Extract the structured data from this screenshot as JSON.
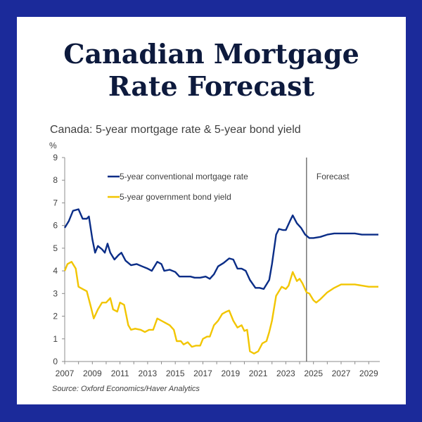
{
  "headline": {
    "line1": "Canadian Mortgage",
    "line2": "Rate Forecast"
  },
  "chart_data": {
    "type": "line",
    "title": "Canada: 5-year mortgage rate & 5-year bond yield",
    "ylabel": "%",
    "ylim": [
      0,
      9
    ],
    "xlim": [
      2007,
      2029.8
    ],
    "yticks": [
      "0",
      "1",
      "2",
      "3",
      "4",
      "5",
      "6",
      "7",
      "8",
      "9"
    ],
    "xticks": [
      "2007",
      "2009",
      "2011",
      "2013",
      "2015",
      "2017",
      "2019",
      "2021",
      "2023",
      "2025",
      "2027",
      "2029"
    ],
    "forecast_start": 2024.5,
    "forecast_label": "Forecast",
    "grid": false,
    "legend": "top-left",
    "series": [
      {
        "name": "5-year conventional mortgage rate",
        "color": "#0a2d87",
        "points": [
          [
            2007.0,
            5.9
          ],
          [
            2007.3,
            6.2
          ],
          [
            2007.6,
            6.65
          ],
          [
            2008.0,
            6.72
          ],
          [
            2008.3,
            6.3
          ],
          [
            2008.6,
            6.3
          ],
          [
            2008.75,
            6.4
          ],
          [
            2009.0,
            5.4
          ],
          [
            2009.2,
            4.8
          ],
          [
            2009.4,
            5.1
          ],
          [
            2009.7,
            4.95
          ],
          [
            2009.9,
            4.8
          ],
          [
            2010.1,
            5.2
          ],
          [
            2010.3,
            4.8
          ],
          [
            2010.6,
            4.5
          ],
          [
            2010.9,
            4.7
          ],
          [
            2011.1,
            4.8
          ],
          [
            2011.4,
            4.45
          ],
          [
            2011.8,
            4.25
          ],
          [
            2012.2,
            4.3
          ],
          [
            2012.6,
            4.2
          ],
          [
            2013.0,
            4.1
          ],
          [
            2013.3,
            4.0
          ],
          [
            2013.7,
            4.4
          ],
          [
            2014.0,
            4.3
          ],
          [
            2014.2,
            4.0
          ],
          [
            2014.6,
            4.05
          ],
          [
            2015.0,
            3.95
          ],
          [
            2015.3,
            3.75
          ],
          [
            2015.7,
            3.75
          ],
          [
            2016.1,
            3.75
          ],
          [
            2016.4,
            3.7
          ],
          [
            2016.8,
            3.7
          ],
          [
            2017.2,
            3.75
          ],
          [
            2017.5,
            3.65
          ],
          [
            2017.8,
            3.85
          ],
          [
            2018.1,
            4.2
          ],
          [
            2018.5,
            4.35
          ],
          [
            2018.9,
            4.55
          ],
          [
            2019.2,
            4.5
          ],
          [
            2019.5,
            4.1
          ],
          [
            2019.8,
            4.1
          ],
          [
            2020.1,
            4.0
          ],
          [
            2020.4,
            3.6
          ],
          [
            2020.8,
            3.25
          ],
          [
            2021.1,
            3.25
          ],
          [
            2021.4,
            3.2
          ],
          [
            2021.8,
            3.6
          ],
          [
            2022.0,
            4.3
          ],
          [
            2022.3,
            5.6
          ],
          [
            2022.5,
            5.85
          ],
          [
            2022.8,
            5.8
          ],
          [
            2023.0,
            5.8
          ],
          [
            2023.3,
            6.2
          ],
          [
            2023.5,
            6.45
          ],
          [
            2023.8,
            6.1
          ],
          [
            2024.1,
            5.9
          ],
          [
            2024.4,
            5.6
          ],
          [
            2024.7,
            5.45
          ],
          [
            2025.0,
            5.45
          ],
          [
            2025.5,
            5.5
          ],
          [
            2026.0,
            5.6
          ],
          [
            2026.5,
            5.65
          ],
          [
            2027.0,
            5.65
          ],
          [
            2027.5,
            5.65
          ],
          [
            2028.0,
            5.65
          ],
          [
            2028.5,
            5.6
          ],
          [
            2029.0,
            5.6
          ],
          [
            2029.7,
            5.6
          ]
        ]
      },
      {
        "name": "5-year government bond yield",
        "color": "#f2c500",
        "points": [
          [
            2007.0,
            4.0
          ],
          [
            2007.2,
            4.3
          ],
          [
            2007.5,
            4.4
          ],
          [
            2007.8,
            4.1
          ],
          [
            2008.0,
            3.3
          ],
          [
            2008.3,
            3.2
          ],
          [
            2008.6,
            3.1
          ],
          [
            2008.9,
            2.4
          ],
          [
            2009.1,
            1.9
          ],
          [
            2009.4,
            2.3
          ],
          [
            2009.7,
            2.6
          ],
          [
            2010.0,
            2.6
          ],
          [
            2010.3,
            2.8
          ],
          [
            2010.5,
            2.3
          ],
          [
            2010.8,
            2.2
          ],
          [
            2011.0,
            2.6
          ],
          [
            2011.3,
            2.5
          ],
          [
            2011.6,
            1.6
          ],
          [
            2011.8,
            1.4
          ],
          [
            2012.1,
            1.45
          ],
          [
            2012.5,
            1.4
          ],
          [
            2012.8,
            1.3
          ],
          [
            2013.1,
            1.4
          ],
          [
            2013.4,
            1.4
          ],
          [
            2013.7,
            1.9
          ],
          [
            2014.0,
            1.8
          ],
          [
            2014.3,
            1.7
          ],
          [
            2014.6,
            1.6
          ],
          [
            2014.9,
            1.4
          ],
          [
            2015.1,
            0.9
          ],
          [
            2015.4,
            0.9
          ],
          [
            2015.6,
            0.75
          ],
          [
            2015.9,
            0.85
          ],
          [
            2016.2,
            0.65
          ],
          [
            2016.5,
            0.7
          ],
          [
            2016.8,
            0.7
          ],
          [
            2017.0,
            1.0
          ],
          [
            2017.3,
            1.1
          ],
          [
            2017.5,
            1.1
          ],
          [
            2017.8,
            1.6
          ],
          [
            2018.1,
            1.8
          ],
          [
            2018.4,
            2.1
          ],
          [
            2018.7,
            2.2
          ],
          [
            2018.9,
            2.25
          ],
          [
            2019.2,
            1.8
          ],
          [
            2019.5,
            1.5
          ],
          [
            2019.8,
            1.6
          ],
          [
            2020.0,
            1.35
          ],
          [
            2020.2,
            1.4
          ],
          [
            2020.4,
            0.45
          ],
          [
            2020.7,
            0.35
          ],
          [
            2021.0,
            0.45
          ],
          [
            2021.3,
            0.8
          ],
          [
            2021.6,
            0.9
          ],
          [
            2021.8,
            1.3
          ],
          [
            2022.0,
            1.8
          ],
          [
            2022.3,
            2.9
          ],
          [
            2022.7,
            3.3
          ],
          [
            2023.0,
            3.2
          ],
          [
            2023.2,
            3.35
          ],
          [
            2023.5,
            3.95
          ],
          [
            2023.8,
            3.55
          ],
          [
            2024.0,
            3.65
          ],
          [
            2024.2,
            3.45
          ],
          [
            2024.5,
            3.05
          ],
          [
            2024.7,
            3.0
          ],
          [
            2025.0,
            2.7
          ],
          [
            2025.2,
            2.6
          ],
          [
            2025.5,
            2.75
          ],
          [
            2026.0,
            3.05
          ],
          [
            2026.5,
            3.25
          ],
          [
            2027.0,
            3.4
          ],
          [
            2027.5,
            3.4
          ],
          [
            2028.0,
            3.4
          ],
          [
            2028.5,
            3.35
          ],
          [
            2029.0,
            3.3
          ],
          [
            2029.7,
            3.3
          ]
        ]
      }
    ],
    "source": "Source: Oxford Economics/Haver Analytics"
  }
}
